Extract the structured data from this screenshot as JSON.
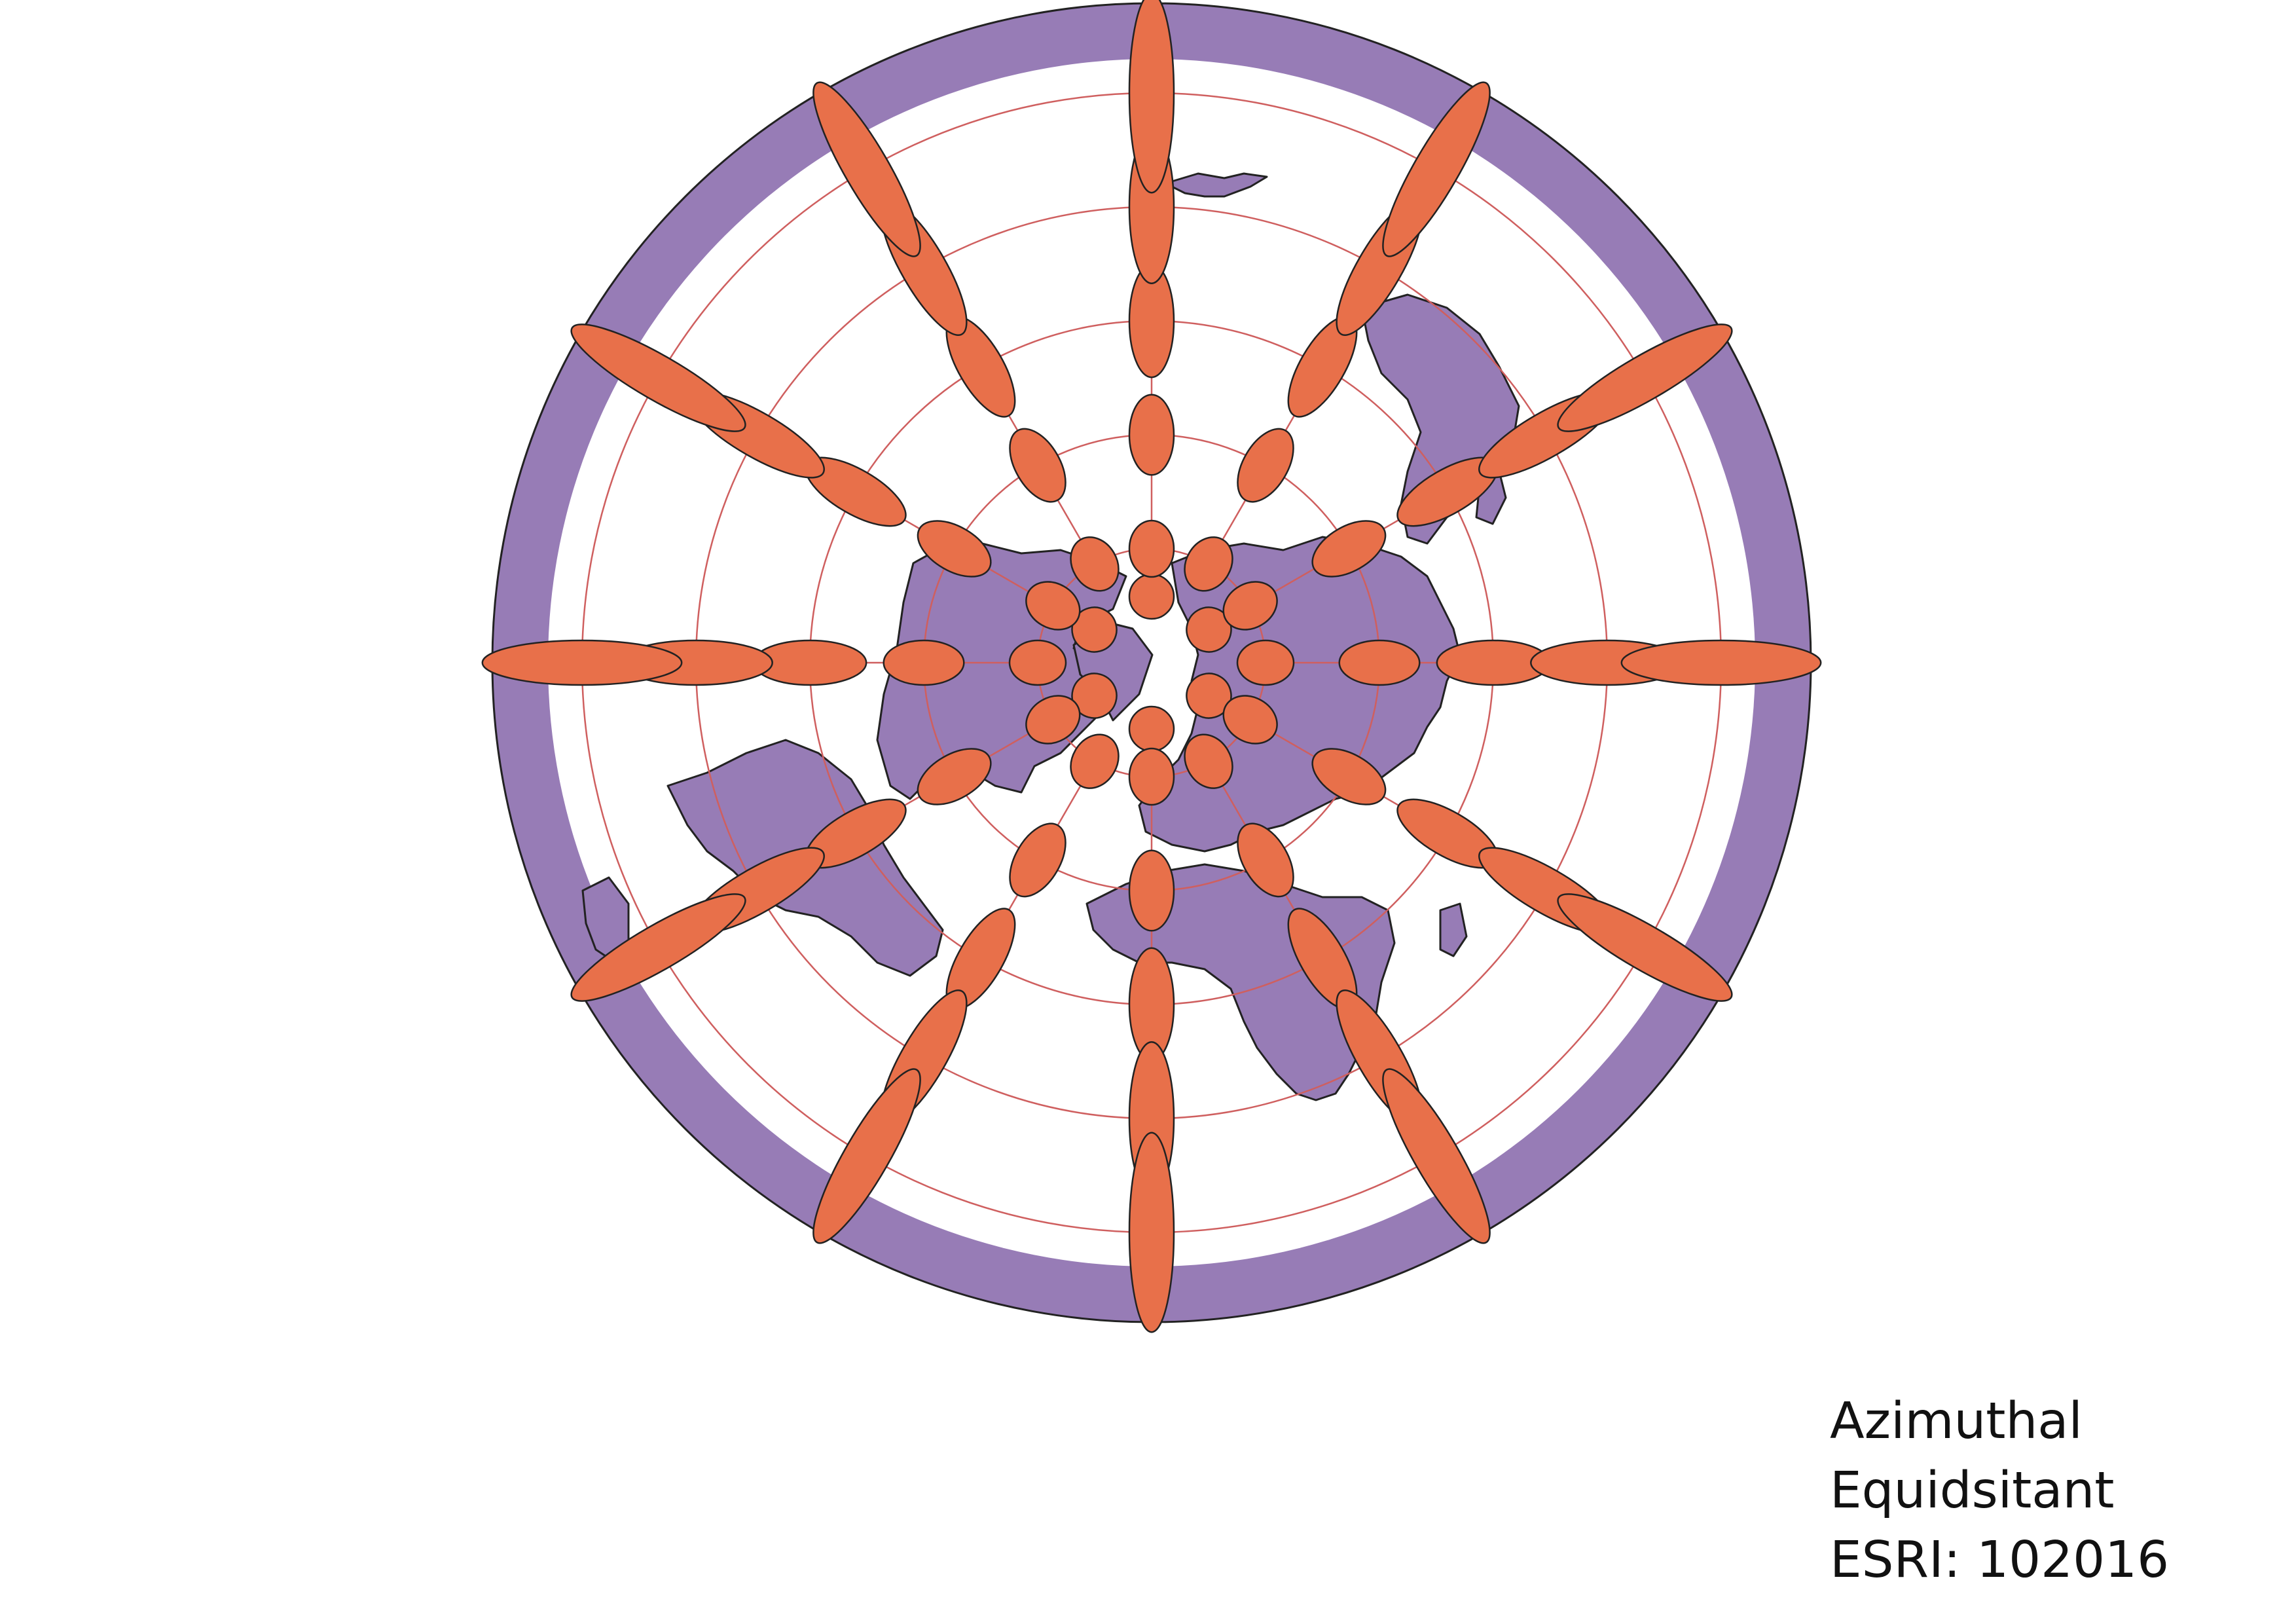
{
  "map": {
    "projection_name_line1": "Azimuthal",
    "projection_name_line2": "Equidsitant",
    "projection_code": "ESRI: 102016",
    "colors": {
      "background": "#ffffff",
      "land_and_outer_ring": "#977cb6",
      "tissot_fill": "#e8704a",
      "graticule": "#cf5f5f",
      "outline": "#222222"
    },
    "indicatrix_rings": 6,
    "indicatrix_spokes": 12
  }
}
